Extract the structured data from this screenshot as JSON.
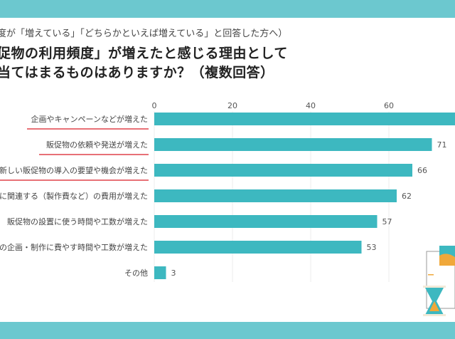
{
  "header": {
    "subtitle": "度が「増えている」「どちらかといえば増えている」と回答した方へ）",
    "title_line1": "促物の利用頻度」が増えたと感じる理由として",
    "title_line2": "当てはまるものはありますか？（複数回答）"
  },
  "colors": {
    "band": "#6cc8cf",
    "bar": "#3db8c0",
    "underline": "#e0424a"
  },
  "chart_data": {
    "type": "bar",
    "orientation": "horizontal",
    "categories": [
      "企画やキャンペーンなどが増えた",
      "販促物の依頼や発送が増えた",
      "新しい販促物の導入の要望や機会が増えた",
      "に関連する（製作費など）の費用が増えた",
      "販促物の設置に使う時間や工数が増えた",
      "の企画・制作に費やす時間や工数が増えた",
      "その他"
    ],
    "values": [
      78,
      71,
      66,
      62,
      57,
      53,
      3
    ],
    "value_labels": [
      "",
      "71",
      "66",
      "62",
      "57",
      "53",
      "3"
    ],
    "underlined": [
      true,
      true,
      true,
      false,
      false,
      false,
      false
    ],
    "xticks": [
      "0",
      "20",
      "40",
      "60"
    ],
    "xlim": [
      0,
      80
    ],
    "grid": true
  }
}
